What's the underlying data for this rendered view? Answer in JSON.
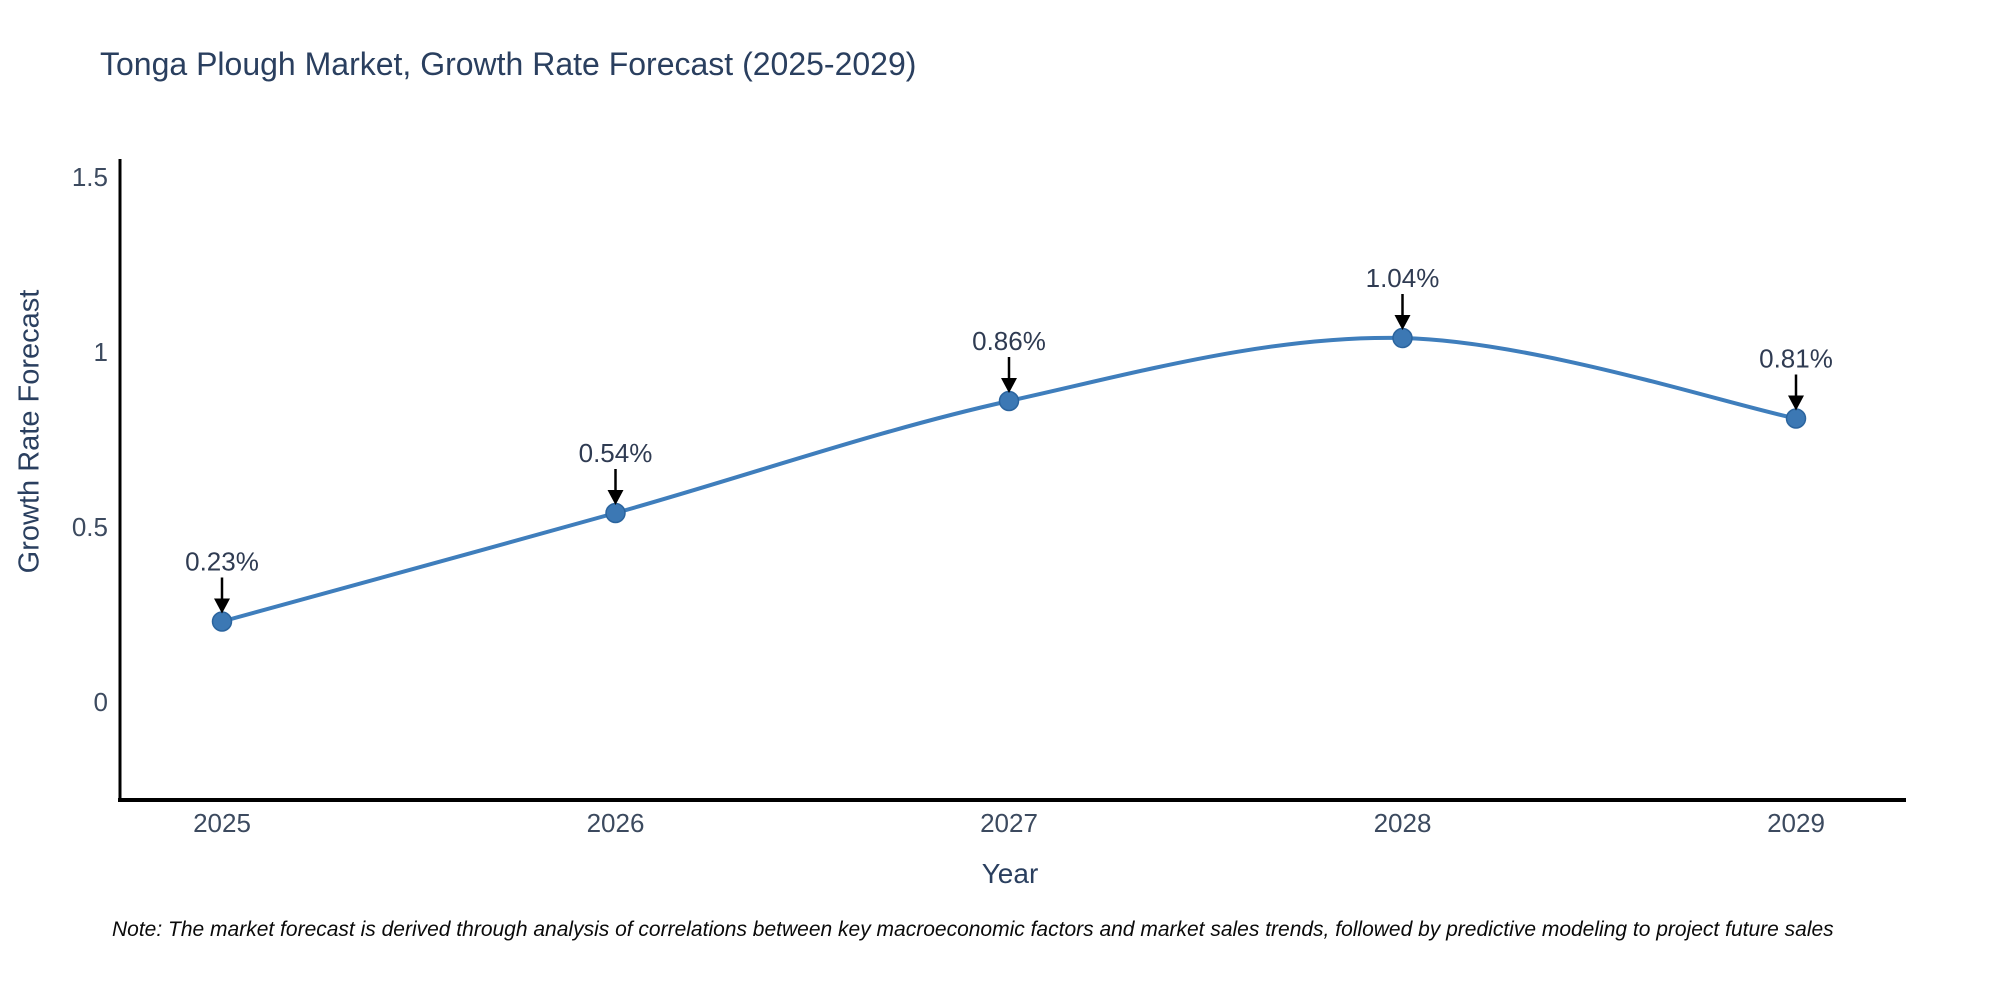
{
  "title": "Tonga Plough Market, Growth Rate Forecast (2025-2029)",
  "note": "Note: The market forecast is derived through analysis of correlations between key macroeconomic factors and market sales trends, followed by predictive modeling to project future sales",
  "chart_data": {
    "type": "line",
    "title": "Tonga Plough Market, Growth Rate Forecast (2025-2029)",
    "xlabel": "Year",
    "ylabel": "Growth Rate Forecast",
    "categories": [
      "2025",
      "2026",
      "2027",
      "2028",
      "2029"
    ],
    "series": [
      {
        "name": "Growth Rate Forecast",
        "values": [
          0.23,
          0.54,
          0.86,
          1.04,
          0.81
        ]
      }
    ],
    "point_labels": [
      "0.23%",
      "0.54%",
      "0.86%",
      "1.04%",
      "0.81%"
    ],
    "ytick_values": [
      0,
      0.5,
      1,
      1.5
    ],
    "ytick_labels": [
      "0",
      "0.5",
      "1",
      "1.5"
    ],
    "ylim": [
      -0.28,
      1.57
    ],
    "line_shape": "spline",
    "grid": false,
    "legend": "none",
    "annotation_style": "black down-arrows from percent labels to markers",
    "colors": {
      "line": "#3f7ebc",
      "marker_fill": "#3c78b4",
      "marker_edge": "#2b649e",
      "arrow": "#000000",
      "axis_line": "#000000",
      "title_text": "#2a3f5f",
      "tick_text": "#3c4a5f",
      "point_label_text": "#2f3b52",
      "note_text": "#0a0a0a",
      "background": "#ffffff"
    }
  }
}
